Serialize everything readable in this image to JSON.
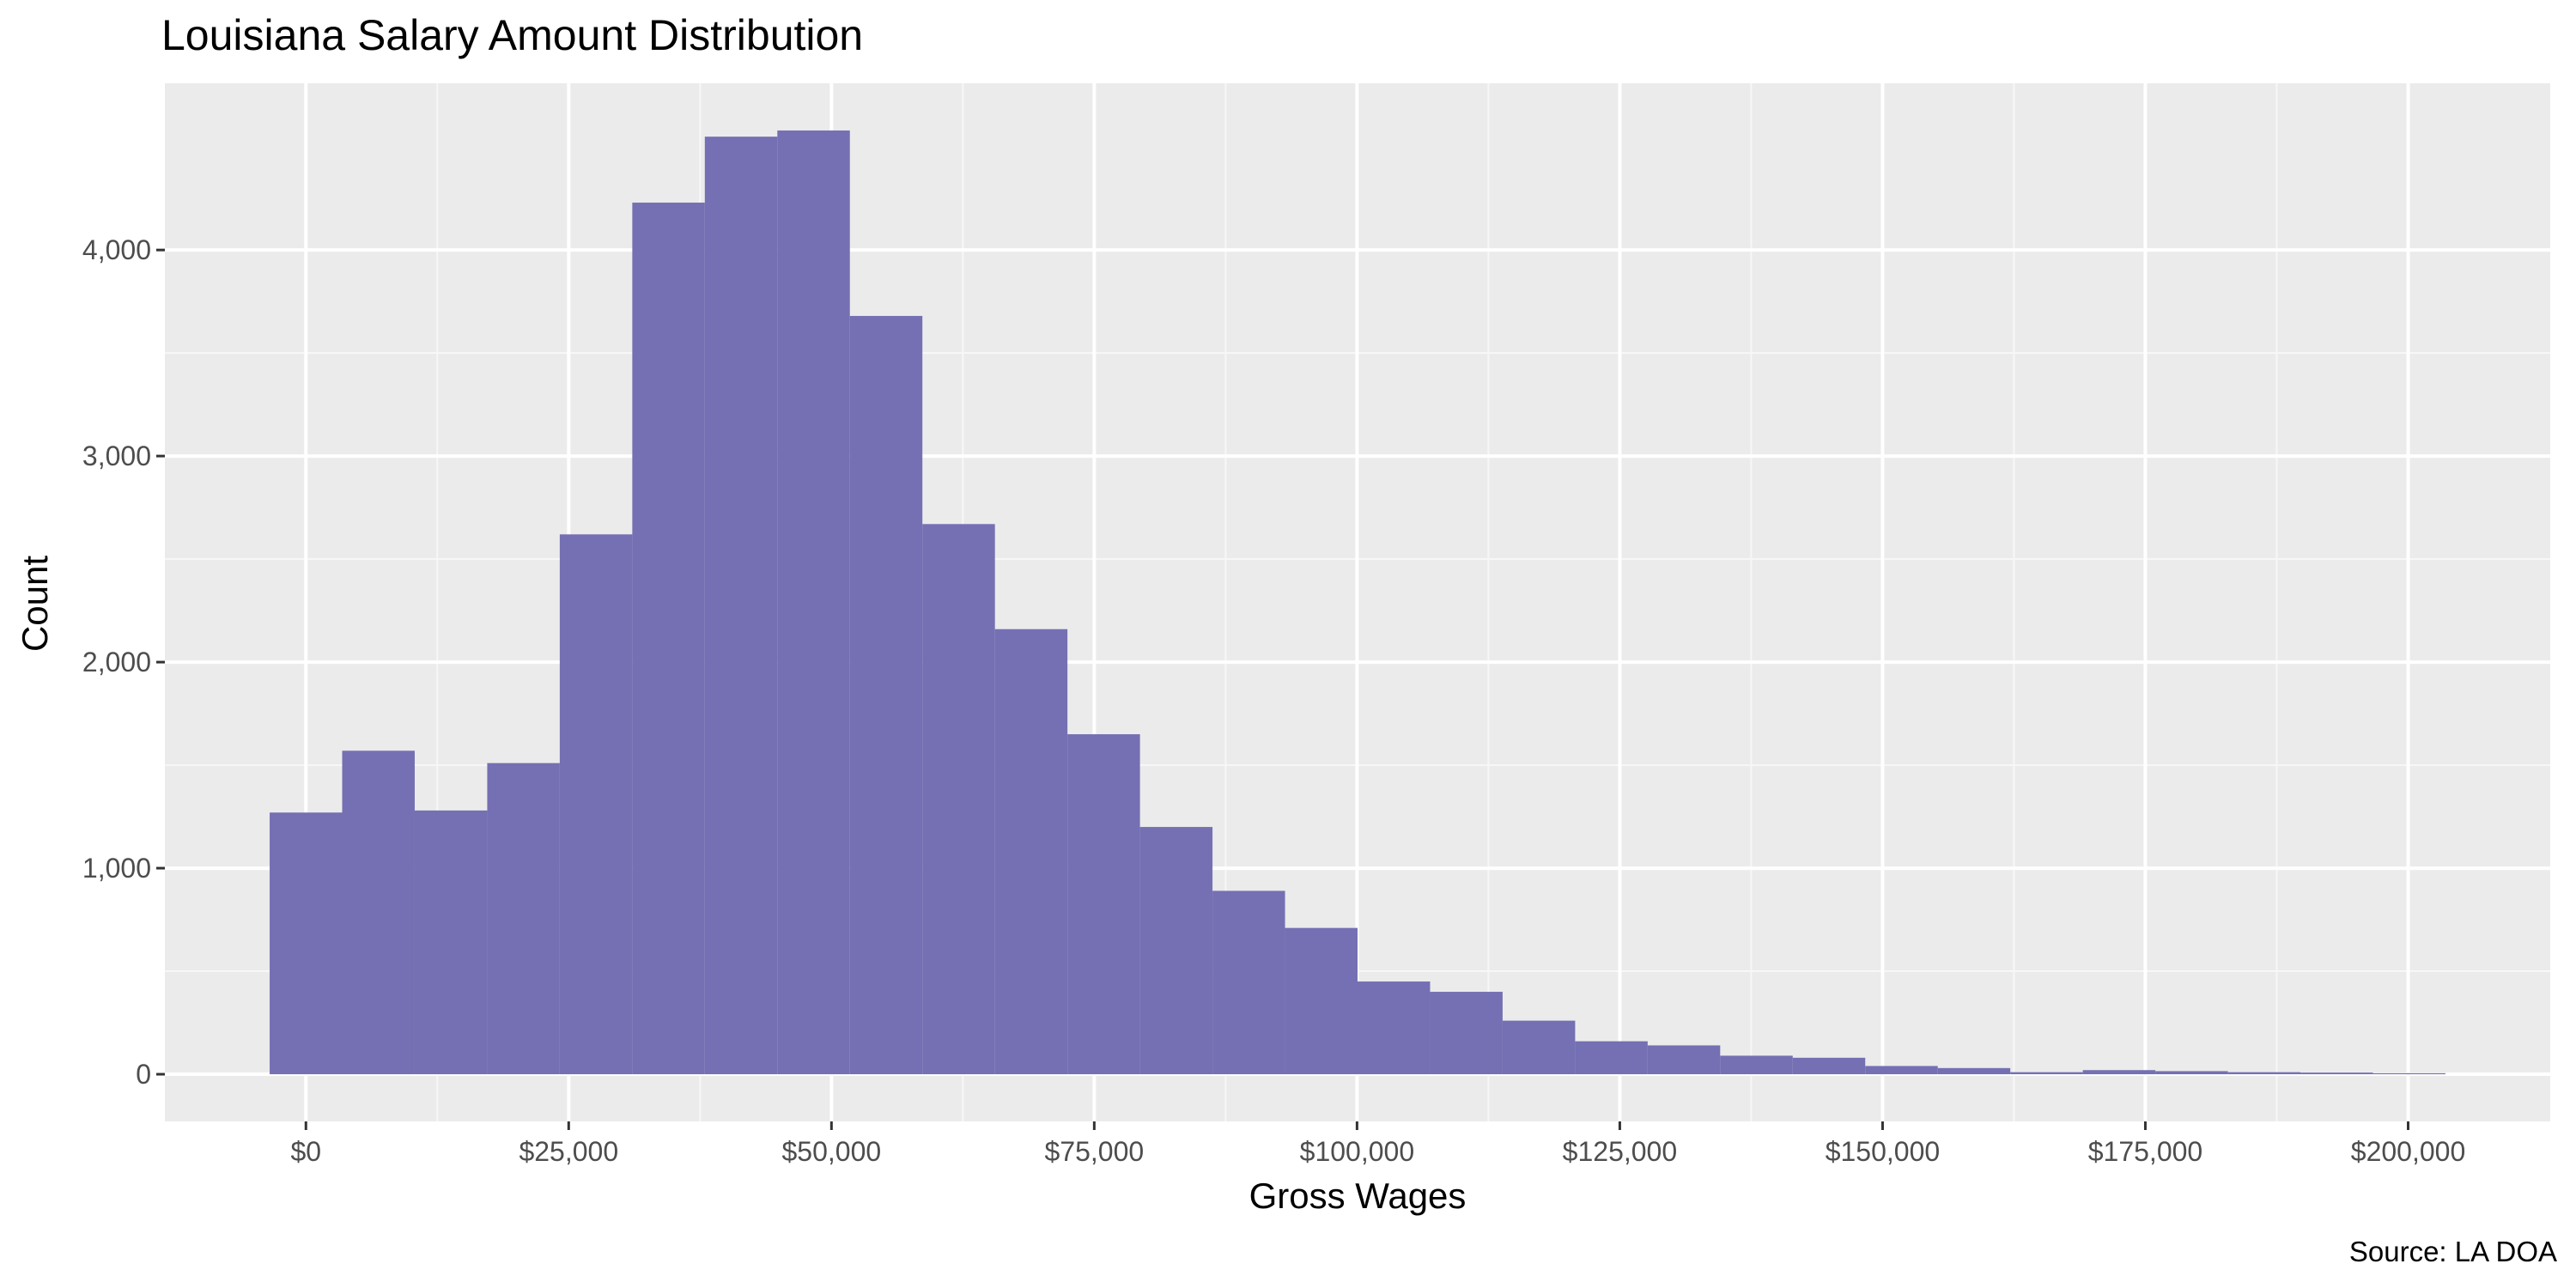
{
  "chart_data": {
    "type": "bar",
    "title": "Louisiana Salary Amount Distribution",
    "xlabel": "Gross Wages",
    "ylabel": "Count",
    "caption": "Source: LA DOA",
    "bin_width": 6900,
    "bins": [
      {
        "x": 0,
        "count": 1270
      },
      {
        "x": 6900,
        "count": 1570
      },
      {
        "x": 13800,
        "count": 1280
      },
      {
        "x": 20700,
        "count": 1510
      },
      {
        "x": 27600,
        "count": 2620
      },
      {
        "x": 34500,
        "count": 4230
      },
      {
        "x": 41400,
        "count": 4550
      },
      {
        "x": 48300,
        "count": 4580
      },
      {
        "x": 55200,
        "count": 3680
      },
      {
        "x": 62100,
        "count": 2670
      },
      {
        "x": 69000,
        "count": 2160
      },
      {
        "x": 75900,
        "count": 1650
      },
      {
        "x": 82800,
        "count": 1200
      },
      {
        "x": 89700,
        "count": 890
      },
      {
        "x": 96600,
        "count": 710
      },
      {
        "x": 103500,
        "count": 450
      },
      {
        "x": 110400,
        "count": 400
      },
      {
        "x": 117300,
        "count": 260
      },
      {
        "x": 124200,
        "count": 160
      },
      {
        "x": 131100,
        "count": 140
      },
      {
        "x": 138000,
        "count": 90
      },
      {
        "x": 144900,
        "count": 80
      },
      {
        "x": 151800,
        "count": 40
      },
      {
        "x": 158700,
        "count": 30
      },
      {
        "x": 165600,
        "count": 10
      },
      {
        "x": 172500,
        "count": 20
      },
      {
        "x": 179400,
        "count": 15
      },
      {
        "x": 186300,
        "count": 10
      },
      {
        "x": 193200,
        "count": 8
      },
      {
        "x": 200100,
        "count": 5
      }
    ],
    "x_ticks": [
      {
        "value": 0,
        "label": "$0"
      },
      {
        "value": 25000,
        "label": "$25,000"
      },
      {
        "value": 50000,
        "label": "$50,000"
      },
      {
        "value": 75000,
        "label": "$75,000"
      },
      {
        "value": 100000,
        "label": "$100,000"
      },
      {
        "value": 125000,
        "label": "$125,000"
      },
      {
        "value": 150000,
        "label": "$150,000"
      },
      {
        "value": 175000,
        "label": "$175,000"
      },
      {
        "value": 200000,
        "label": "$200,000"
      }
    ],
    "y_ticks": [
      {
        "value": 0,
        "label": "0"
      },
      {
        "value": 1000,
        "label": "1,000"
      },
      {
        "value": 2000,
        "label": "2,000"
      },
      {
        "value": 3000,
        "label": "3,000"
      },
      {
        "value": 4000,
        "label": "4,000"
      }
    ],
    "xlim": [
      -13420,
      213520
    ],
    "ylim": [
      -229,
      4809
    ],
    "grid": true,
    "legend": "none",
    "colors": {
      "bar_fill": "#7570b3",
      "panel_background": "#ebebeb",
      "grid_major": "#ffffff",
      "grid_minor": "#f7f7f7"
    }
  }
}
